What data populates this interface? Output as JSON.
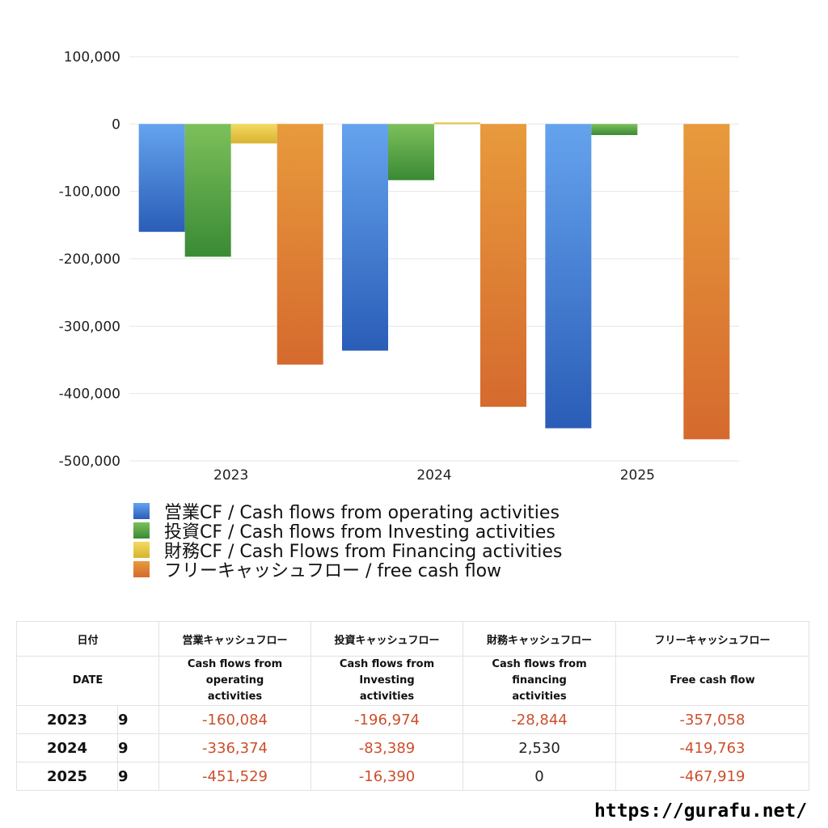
{
  "chart_data": {
    "type": "bar",
    "categories": [
      "2023",
      "2024",
      "2025"
    ],
    "ylim": [
      -500000,
      100000
    ],
    "yticks": [
      100000,
      0,
      -100000,
      -200000,
      -300000,
      -400000,
      -500000
    ],
    "ytick_labels": [
      "100,000",
      "0",
      "-100,000",
      "-200,000",
      "-300,000",
      "-400,000",
      "-500,000"
    ],
    "series": [
      {
        "name": "営業CF / Cash flows from operating activities",
        "color": "#3b73c8",
        "color_top": "#65a3ee",
        "color_bottom": "#2a5db7",
        "values": [
          -160084,
          -336374,
          -451529
        ]
      },
      {
        "name": "投資CF / Cash flows from Investing activities",
        "color": "#4f9a3e",
        "color_top": "#7cc05a",
        "color_bottom": "#3a8a35",
        "values": [
          -196974,
          -83389,
          -16390
        ]
      },
      {
        "name": "財務CF / Cash Flows from Financing activities",
        "color": "#e6c43a",
        "color_top": "#f2db60",
        "color_bottom": "#d9b230",
        "values": [
          -28844,
          2530,
          0
        ]
      },
      {
        "name": "フリーキャッシュフロー / free cash flow",
        "color": "#e08a38",
        "color_top": "#e89a3c",
        "color_bottom": "#d56a2e",
        "values": [
          -357058,
          -419763,
          -467919
        ]
      }
    ],
    "grid": true,
    "legend_position": "bottom"
  },
  "table": {
    "headers_jp": [
      "日付",
      "営業キャッシュフロー",
      "投資キャッシュフロー",
      "財務キャッシュフロー",
      "フリーキャッシュフロー"
    ],
    "headers_en": [
      "DATE",
      "Cash flows from operating activities",
      "Cash flows from Investing activities",
      "Cash flows from financing activities",
      "Free cash flow"
    ],
    "rows": [
      {
        "year": "2023",
        "month": "9",
        "values": [
          "-160,084",
          "-196,974",
          "-28,844",
          "-357,058"
        ]
      },
      {
        "year": "2024",
        "month": "9",
        "values": [
          "-336,374",
          "-83,389",
          "2,530",
          "-419,763"
        ]
      },
      {
        "year": "2025",
        "month": "9",
        "values": [
          "-451,529",
          "-16,390",
          "0",
          "-467,919"
        ]
      }
    ]
  },
  "footer": {
    "url": "https://gurafu.net/"
  }
}
